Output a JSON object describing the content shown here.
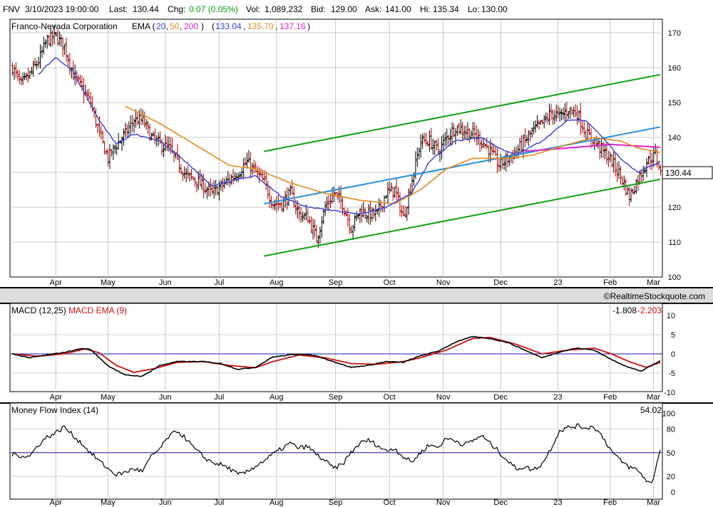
{
  "header": {
    "symbol": "FNV",
    "datetime": "3/10/2023 19:00:00",
    "last_label": "Last:",
    "last": "130.44",
    "chg_label": "Chg:",
    "chg": "0.07 (0.05%)",
    "vol_label": "Vol:",
    "vol": "1,089,232",
    "bid_label": "Bid:",
    "bid": "129.00",
    "ask_label": "Ask:",
    "ask": "141.00",
    "hi_label": "Hi:",
    "hi": "135.34",
    "lo_label": "Lo:",
    "lo": "130.00"
  },
  "price_panel": {
    "company": "Franco-Nevada Corporation",
    "ema_label": "EMA (",
    "ema_periods": [
      "20",
      "50",
      "200"
    ],
    "ema_close_paren": ")",
    "ema_values": [
      "133.04",
      "135.70",
      "137.16"
    ],
    "last_tag": "130.44",
    "watermark": "©RealtimeStockquote.com"
  },
  "macd_panel": {
    "title": "MACD (12,25)",
    "signal_title": "MACD EMA (9)",
    "macd_value": "-1.808",
    "signal_value": "-2.203"
  },
  "mfi_panel": {
    "title": "Money Flow Index (14)",
    "value": "54.02"
  },
  "colors": {
    "ema20": "#3a3fd0",
    "ema50": "#e08a1e",
    "ema200": "#e020c8",
    "chg": "#119911",
    "up_bar": "#000000",
    "down_bar": "#aa0000",
    "channel": "#11a011",
    "regression": "#2a8fd6",
    "macd": "#000000",
    "signal": "#cc1111",
    "zero_line": "#1515b0"
  },
  "chart_data": [
    {
      "type": "ohlc",
      "name": "price",
      "x_tick_labels": [
        "Apr",
        "May",
        "Jun",
        "Jul",
        "Aug",
        "Sep",
        "Oct",
        "Nov",
        "Dec",
        "23",
        "Feb",
        "Mar"
      ],
      "y_ticks": [
        100,
        110,
        120,
        130,
        140,
        150,
        160,
        170
      ],
      "ylim": [
        100,
        170
      ],
      "grid": true,
      "close_anchors": [
        [
          0,
          160
        ],
        [
          5,
          155
        ],
        [
          10,
          158
        ],
        [
          15,
          162
        ],
        [
          20,
          168
        ],
        [
          25,
          169
        ],
        [
          30,
          166
        ],
        [
          35,
          158
        ],
        [
          40,
          154
        ],
        [
          45,
          150
        ],
        [
          50,
          141
        ],
        [
          55,
          134
        ],
        [
          60,
          138
        ],
        [
          65,
          141
        ],
        [
          70,
          145
        ],
        [
          75,
          145
        ],
        [
          80,
          140
        ],
        [
          85,
          138
        ],
        [
          90,
          137
        ],
        [
          95,
          133
        ],
        [
          100,
          129
        ],
        [
          105,
          128
        ],
        [
          110,
          126
        ],
        [
          115,
          124
        ],
        [
          120,
          126
        ],
        [
          125,
          128
        ],
        [
          130,
          130
        ],
        [
          135,
          133
        ],
        [
          140,
          130
        ],
        [
          145,
          127
        ],
        [
          150,
          121
        ],
        [
          155,
          121
        ],
        [
          160,
          124
        ],
        [
          165,
          118
        ],
        [
          170,
          117
        ],
        [
          175,
          111
        ],
        [
          180,
          120
        ],
        [
          185,
          124
        ],
        [
          190,
          121
        ],
        [
          195,
          114
        ],
        [
          200,
          119
        ],
        [
          205,
          118
        ],
        [
          210,
          118
        ],
        [
          215,
          124
        ],
        [
          220,
          125
        ],
        [
          225,
          117
        ],
        [
          230,
          128
        ],
        [
          235,
          139
        ],
        [
          240,
          139
        ],
        [
          245,
          136
        ],
        [
          250,
          140
        ],
        [
          255,
          143
        ],
        [
          260,
          142
        ],
        [
          265,
          141
        ],
        [
          270,
          139
        ],
        [
          275,
          136
        ],
        [
          280,
          132
        ],
        [
          285,
          134
        ],
        [
          290,
          136
        ],
        [
          295,
          139
        ],
        [
          300,
          142
        ],
        [
          305,
          144
        ],
        [
          310,
          147
        ],
        [
          315,
          146
        ],
        [
          320,
          148
        ],
        [
          325,
          147
        ],
        [
          330,
          141
        ],
        [
          335,
          139
        ],
        [
          340,
          136
        ],
        [
          345,
          133
        ],
        [
          350,
          129
        ],
        [
          355,
          123
        ],
        [
          360,
          128
        ],
        [
          365,
          133
        ],
        [
          370,
          135
        ],
        [
          373,
          130.44
        ]
      ],
      "ema20_anchors": [
        [
          15,
          158
        ],
        [
          25,
          163
        ],
        [
          35,
          159
        ],
        [
          50,
          145
        ],
        [
          60,
          138
        ],
        [
          70,
          141
        ],
        [
          85,
          139
        ],
        [
          100,
          133
        ],
        [
          115,
          126
        ],
        [
          130,
          128
        ],
        [
          140,
          129
        ],
        [
          155,
          123
        ],
        [
          170,
          120
        ],
        [
          185,
          119
        ],
        [
          200,
          118
        ],
        [
          215,
          120
        ],
        [
          230,
          124
        ],
        [
          240,
          133
        ],
        [
          255,
          139
        ],
        [
          270,
          140
        ],
        [
          280,
          137
        ],
        [
          290,
          135
        ],
        [
          305,
          139
        ],
        [
          320,
          145
        ],
        [
          330,
          145
        ],
        [
          340,
          140
        ],
        [
          350,
          134
        ],
        [
          360,
          130
        ],
        [
          373,
          133.04
        ]
      ],
      "ema50_anchors": [
        [
          65,
          149
        ],
        [
          85,
          144
        ],
        [
          105,
          138
        ],
        [
          125,
          132
        ],
        [
          140,
          131
        ],
        [
          160,
          127
        ],
        [
          180,
          124
        ],
        [
          200,
          122
        ],
        [
          220,
          121
        ],
        [
          235,
          125
        ],
        [
          250,
          131
        ],
        [
          265,
          134
        ],
        [
          285,
          134
        ],
        [
          300,
          135
        ],
        [
          320,
          138
        ],
        [
          335,
          140
        ],
        [
          350,
          139
        ],
        [
          360,
          137
        ],
        [
          373,
          135.7
        ]
      ],
      "ema200_anchors": [
        [
          295,
          136
        ],
        [
          320,
          137
        ],
        [
          345,
          138
        ],
        [
          373,
          137.16
        ]
      ],
      "upper_channel": [
        [
          145,
          136
        ],
        [
          373,
          158
        ]
      ],
      "lower_channel": [
        [
          145,
          106
        ],
        [
          373,
          128
        ]
      ],
      "regression_line": [
        [
          145,
          121
        ],
        [
          373,
          143
        ]
      ]
    },
    {
      "type": "line",
      "name": "MACD (12,25)",
      "y_ticks": [
        -10,
        -5,
        0,
        5,
        10
      ],
      "ylim": [
        -10,
        10
      ],
      "series": [
        {
          "name": "MACD (12,25)",
          "anchors": [
            [
              0,
              0
            ],
            [
              10,
              -1
            ],
            [
              20,
              -0.3
            ],
            [
              30,
              0.4
            ],
            [
              40,
              1.4
            ],
            [
              45,
              1.2
            ],
            [
              55,
              -3
            ],
            [
              65,
              -5.5
            ],
            [
              75,
              -5.8
            ],
            [
              85,
              -3
            ],
            [
              95,
              -2
            ],
            [
              110,
              -2
            ],
            [
              120,
              -2.5
            ],
            [
              130,
              -4
            ],
            [
              140,
              -3.5
            ],
            [
              150,
              -0.8
            ],
            [
              165,
              0
            ],
            [
              175,
              -0.5
            ],
            [
              185,
              -2
            ],
            [
              195,
              -3.5
            ],
            [
              205,
              -3
            ],
            [
              215,
              -2
            ],
            [
              225,
              -2.2
            ],
            [
              235,
              -0.5
            ],
            [
              245,
              0.7
            ],
            [
              255,
              3
            ],
            [
              265,
              4.5
            ],
            [
              275,
              4
            ],
            [
              285,
              3
            ],
            [
              295,
              1
            ],
            [
              305,
              -1
            ],
            [
              315,
              0.5
            ],
            [
              325,
              1.5
            ],
            [
              335,
              1
            ],
            [
              345,
              -1.5
            ],
            [
              355,
              -3.5
            ],
            [
              362,
              -4.5
            ],
            [
              368,
              -3
            ],
            [
              373,
              -1.808
            ]
          ]
        },
        {
          "name": "MACD EMA (9)",
          "anchors": [
            [
              0,
              0
            ],
            [
              15,
              -0.6
            ],
            [
              30,
              0
            ],
            [
              42,
              1.3
            ],
            [
              50,
              0.3
            ],
            [
              60,
              -3
            ],
            [
              70,
              -4.8
            ],
            [
              82,
              -3.8
            ],
            [
              95,
              -2.2
            ],
            [
              110,
              -2
            ],
            [
              125,
              -3
            ],
            [
              140,
              -3.6
            ],
            [
              150,
              -2
            ],
            [
              165,
              -0.3
            ],
            [
              180,
              -1
            ],
            [
              195,
              -2.5
            ],
            [
              210,
              -2.7
            ],
            [
              225,
              -2
            ],
            [
              235,
              -1
            ],
            [
              250,
              1
            ],
            [
              265,
              4
            ],
            [
              275,
              4.3
            ],
            [
              290,
              2.5
            ],
            [
              305,
              0
            ],
            [
              320,
              1
            ],
            [
              335,
              1.5
            ],
            [
              345,
              0
            ],
            [
              355,
              -2
            ],
            [
              365,
              -3.5
            ],
            [
              373,
              -2.203
            ]
          ]
        }
      ]
    },
    {
      "type": "line",
      "name": "Money Flow Index (14)",
      "y_ticks": [
        0,
        20,
        50,
        80,
        100
      ],
      "ylim": [
        -2,
        104
      ],
      "series": [
        {
          "name": "Money Flow Index (14)",
          "anchors": [
            [
              0,
              48
            ],
            [
              10,
              45
            ],
            [
              15,
              60
            ],
            [
              20,
              70
            ],
            [
              25,
              75
            ],
            [
              30,
              83
            ],
            [
              35,
              72
            ],
            [
              40,
              62
            ],
            [
              45,
              50
            ],
            [
              50,
              40
            ],
            [
              55,
              30
            ],
            [
              60,
              22
            ],
            [
              65,
              25
            ],
            [
              70,
              30
            ],
            [
              75,
              26
            ],
            [
              80,
              45
            ],
            [
              85,
              55
            ],
            [
              90,
              70
            ],
            [
              95,
              78
            ],
            [
              100,
              68
            ],
            [
              105,
              55
            ],
            [
              110,
              45
            ],
            [
              115,
              38
            ],
            [
              120,
              35
            ],
            [
              125,
              30
            ],
            [
              130,
              22
            ],
            [
              135,
              25
            ],
            [
              140,
              33
            ],
            [
              145,
              40
            ],
            [
              150,
              48
            ],
            [
              155,
              55
            ],
            [
              160,
              62
            ],
            [
              165,
              56
            ],
            [
              170,
              58
            ],
            [
              175,
              48
            ],
            [
              180,
              40
            ],
            [
              185,
              30
            ],
            [
              190,
              35
            ],
            [
              195,
              50
            ],
            [
              200,
              62
            ],
            [
              205,
              66
            ],
            [
              210,
              60
            ],
            [
              215,
              52
            ],
            [
              220,
              56
            ],
            [
              225,
              45
            ],
            [
              230,
              38
            ],
            [
              235,
              50
            ],
            [
              240,
              60
            ],
            [
              245,
              57
            ],
            [
              250,
              68
            ],
            [
              255,
              66
            ],
            [
              260,
              60
            ],
            [
              265,
              65
            ],
            [
              270,
              72
            ],
            [
              275,
              62
            ],
            [
              280,
              52
            ],
            [
              285,
              40
            ],
            [
              290,
              30
            ],
            [
              295,
              32
            ],
            [
              300,
              28
            ],
            [
              305,
              36
            ],
            [
              310,
              55
            ],
            [
              315,
              78
            ],
            [
              320,
              82
            ],
            [
              325,
              84
            ],
            [
              330,
              82
            ],
            [
              335,
              83
            ],
            [
              340,
              70
            ],
            [
              345,
              52
            ],
            [
              350,
              40
            ],
            [
              355,
              32
            ],
            [
              360,
              28
            ],
            [
              365,
              15
            ],
            [
              368,
              10
            ],
            [
              373,
              54
            ]
          ]
        }
      ]
    }
  ]
}
